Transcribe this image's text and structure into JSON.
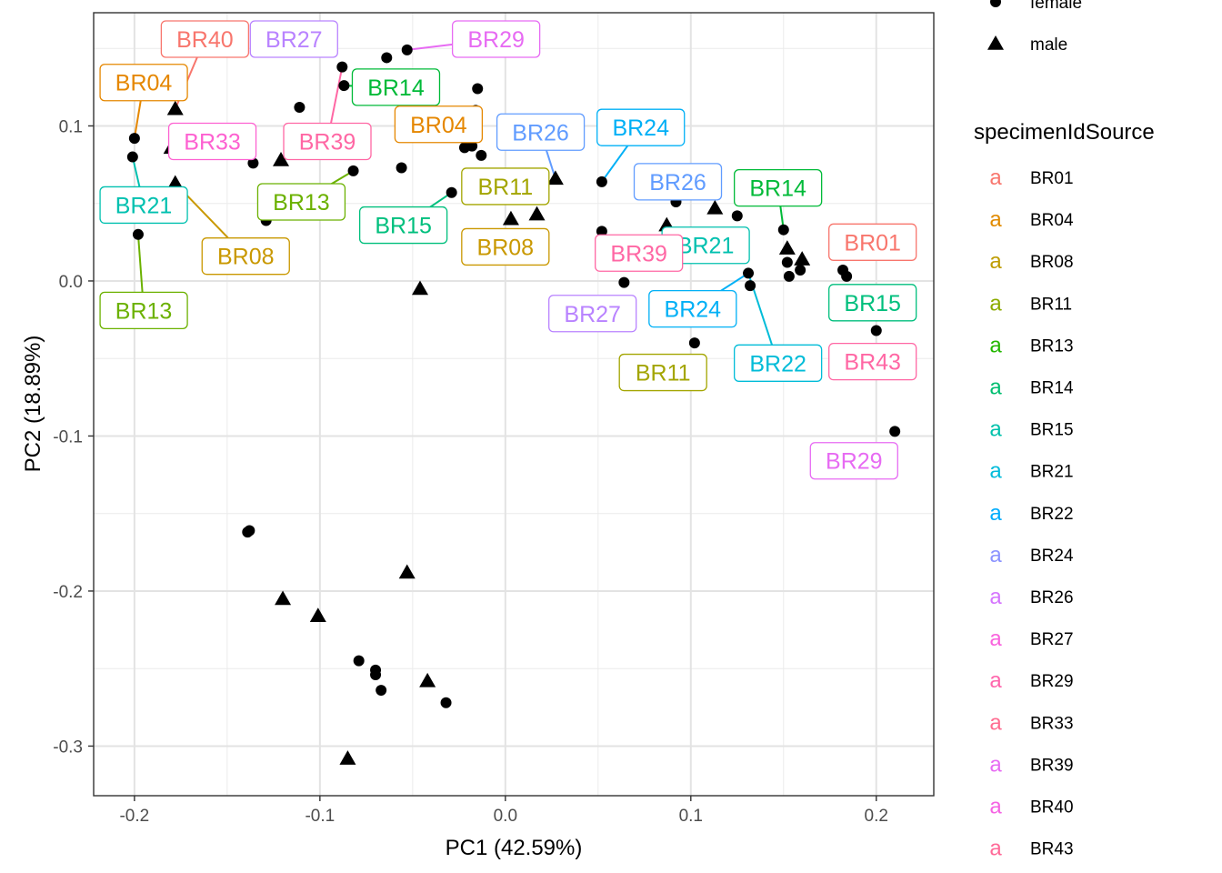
{
  "chart_data": {
    "type": "scatter",
    "xlabel": "PC1 (42.59%)",
    "ylabel": "PC2 (18.89%)",
    "xlim": [
      -0.222,
      0.231
    ],
    "ylim": [
      -0.332,
      0.173
    ],
    "x_ticks": [
      -0.2,
      -0.1,
      0.0,
      0.1,
      0.2
    ],
    "x_tick_labels": [
      "-0.2",
      "-0.1",
      "0.0",
      "0.1",
      "0.2"
    ],
    "y_ticks": [
      0.1,
      0.0,
      -0.1,
      -0.2,
      -0.3
    ],
    "y_tick_labels": [
      "0.1",
      "0.0",
      "-0.1",
      "-0.2",
      "-0.3"
    ],
    "grid": true,
    "legend_position": "right",
    "shape_legend": {
      "entries": [
        {
          "label": "female",
          "shape": "circle"
        },
        {
          "label": "male",
          "shape": "triangle"
        }
      ]
    },
    "color_legend": {
      "title": "specimenIdSource",
      "key_glyph": "a",
      "entries": [
        {
          "label": "BR01",
          "color": "#F8766D"
        },
        {
          "label": "BR04",
          "color": "#E18A00"
        },
        {
          "label": "BR08",
          "color": "#BE9C00"
        },
        {
          "label": "BR11",
          "color": "#8CAB00"
        },
        {
          "label": "BR13",
          "color": "#24B700"
        },
        {
          "label": "BR14",
          "color": "#00BE70"
        },
        {
          "label": "BR15",
          "color": "#00C1AB"
        },
        {
          "label": "BR21",
          "color": "#00BBDA"
        },
        {
          "label": "BR22",
          "color": "#00ACFC"
        },
        {
          "label": "BR24",
          "color": "#8B93FF"
        },
        {
          "label": "BR26",
          "color": "#D575FE"
        },
        {
          "label": "BR27",
          "color": "#F962DD"
        },
        {
          "label": "BR29",
          "color": "#FF65AC"
        },
        {
          "label": "BR33",
          "color": "#FF6C91"
        },
        {
          "label": "BR39",
          "color": "#E76BF3"
        },
        {
          "label": "BR40",
          "color": "#F564E3"
        },
        {
          "label": "BR43",
          "color": "#FF6A98"
        }
      ]
    },
    "label_colors": {
      "BR01": "#F8766D",
      "BR04": "#E58700",
      "BR08": "#C99800",
      "BR11": "#A3A500",
      "BR13": "#6BB100",
      "BR14": "#00BA38",
      "BR15": "#00BF7D",
      "BR21": "#00C0AF",
      "BR22": "#00BCD8",
      "BR24": "#00B0F6",
      "BR26": "#619CFF",
      "BR27": "#B983FF",
      "BR29": "#E76BF3",
      "BR33": "#FD61D1",
      "BR39": "#FF67A4",
      "BR40": "#F8766D",
      "BR43": "#FF67A4"
    },
    "points": [
      {
        "x": -0.2,
        "y": 0.092,
        "shape": "circle"
      },
      {
        "x": -0.201,
        "y": 0.08,
        "shape": "circle"
      },
      {
        "x": -0.198,
        "y": 0.03,
        "shape": "circle"
      },
      {
        "x": -0.178,
        "y": 0.111,
        "shape": "triangle"
      },
      {
        "x": -0.18,
        "y": 0.086,
        "shape": "triangle"
      },
      {
        "x": -0.178,
        "y": 0.063,
        "shape": "triangle"
      },
      {
        "x": -0.136,
        "y": 0.076,
        "shape": "circle"
      },
      {
        "x": -0.129,
        "y": 0.039,
        "shape": "circle"
      },
      {
        "x": -0.121,
        "y": 0.078,
        "shape": "triangle"
      },
      {
        "x": -0.111,
        "y": 0.112,
        "shape": "circle"
      },
      {
        "x": -0.088,
        "y": 0.138,
        "shape": "circle"
      },
      {
        "x": -0.087,
        "y": 0.126,
        "shape": "circle"
      },
      {
        "x": -0.082,
        "y": 0.071,
        "shape": "circle"
      },
      {
        "x": -0.064,
        "y": 0.144,
        "shape": "circle"
      },
      {
        "x": -0.053,
        "y": 0.149,
        "shape": "circle"
      },
      {
        "x": -0.056,
        "y": 0.073,
        "shape": "circle"
      },
      {
        "x": -0.046,
        "y": -0.005,
        "shape": "triangle"
      },
      {
        "x": -0.029,
        "y": 0.057,
        "shape": "circle"
      },
      {
        "x": -0.022,
        "y": 0.086,
        "shape": "circle"
      },
      {
        "x": -0.018,
        "y": 0.087,
        "shape": "circle"
      },
      {
        "x": -0.016,
        "y": 0.11,
        "shape": "circle"
      },
      {
        "x": -0.015,
        "y": 0.124,
        "shape": "circle"
      },
      {
        "x": -0.013,
        "y": 0.081,
        "shape": "circle"
      },
      {
        "x": 0.003,
        "y": 0.04,
        "shape": "triangle"
      },
      {
        "x": 0.017,
        "y": 0.043,
        "shape": "triangle"
      },
      {
        "x": 0.027,
        "y": 0.066,
        "shape": "triangle"
      },
      {
        "x": 0.052,
        "y": 0.064,
        "shape": "circle"
      },
      {
        "x": 0.052,
        "y": 0.032,
        "shape": "circle"
      },
      {
        "x": 0.064,
        "y": -0.001,
        "shape": "circle"
      },
      {
        "x": 0.087,
        "y": 0.036,
        "shape": "triangle"
      },
      {
        "x": 0.092,
        "y": 0.051,
        "shape": "circle"
      },
      {
        "x": 0.102,
        "y": -0.04,
        "shape": "circle"
      },
      {
        "x": 0.113,
        "y": 0.047,
        "shape": "triangle"
      },
      {
        "x": 0.125,
        "y": 0.042,
        "shape": "circle"
      },
      {
        "x": 0.131,
        "y": 0.005,
        "shape": "circle"
      },
      {
        "x": 0.132,
        "y": -0.003,
        "shape": "circle"
      },
      {
        "x": 0.15,
        "y": 0.033,
        "shape": "circle"
      },
      {
        "x": 0.152,
        "y": 0.012,
        "shape": "circle"
      },
      {
        "x": 0.152,
        "y": 0.021,
        "shape": "triangle"
      },
      {
        "x": 0.153,
        "y": 0.003,
        "shape": "circle"
      },
      {
        "x": 0.159,
        "y": 0.007,
        "shape": "circle"
      },
      {
        "x": 0.16,
        "y": 0.014,
        "shape": "triangle"
      },
      {
        "x": 0.182,
        "y": 0.007,
        "shape": "circle"
      },
      {
        "x": 0.184,
        "y": 0.003,
        "shape": "circle"
      },
      {
        "x": 0.2,
        "y": -0.032,
        "shape": "circle"
      },
      {
        "x": 0.21,
        "y": -0.06,
        "shape": "circle"
      },
      {
        "x": 0.21,
        "y": -0.097,
        "shape": "circle"
      },
      {
        "x": -0.139,
        "y": -0.162,
        "shape": "circle"
      },
      {
        "x": -0.138,
        "y": -0.161,
        "shape": "circle"
      },
      {
        "x": -0.053,
        "y": -0.188,
        "shape": "triangle"
      },
      {
        "x": -0.12,
        "y": -0.205,
        "shape": "triangle"
      },
      {
        "x": -0.101,
        "y": -0.216,
        "shape": "triangle"
      },
      {
        "x": -0.079,
        "y": -0.245,
        "shape": "circle"
      },
      {
        "x": -0.07,
        "y": -0.251,
        "shape": "circle"
      },
      {
        "x": -0.07,
        "y": -0.254,
        "shape": "circle"
      },
      {
        "x": -0.067,
        "y": -0.264,
        "shape": "circle"
      },
      {
        "x": -0.042,
        "y": -0.258,
        "shape": "triangle"
      },
      {
        "x": -0.032,
        "y": -0.272,
        "shape": "circle"
      },
      {
        "x": -0.085,
        "y": -0.308,
        "shape": "triangle"
      }
    ],
    "labels": [
      {
        "text": "BR40",
        "lx": -0.162,
        "ly": 0.156,
        "px": -0.178,
        "py": 0.111
      },
      {
        "text": "BR27",
        "lx": -0.114,
        "ly": 0.156
      },
      {
        "text": "BR29",
        "lx": -0.005,
        "ly": 0.156,
        "px": -0.053,
        "py": 0.149
      },
      {
        "text": "BR04",
        "lx": -0.195,
        "ly": 0.128,
        "px": -0.2,
        "py": 0.092
      },
      {
        "text": "BR14",
        "lx": -0.059,
        "ly": 0.125,
        "px": -0.087,
        "py": 0.126
      },
      {
        "text": "BR33",
        "lx": -0.158,
        "ly": 0.09
      },
      {
        "text": "BR39",
        "lx": -0.096,
        "ly": 0.09,
        "px": -0.088,
        "py": 0.138
      },
      {
        "text": "BR04",
        "lx": -0.036,
        "ly": 0.101
      },
      {
        "text": "BR26",
        "lx": 0.019,
        "ly": 0.096,
        "px": 0.027,
        "py": 0.066
      },
      {
        "text": "BR24",
        "lx": 0.073,
        "ly": 0.099,
        "px": 0.052,
        "py": 0.064
      },
      {
        "text": "BR11",
        "lx": 0.0,
        "ly": 0.061
      },
      {
        "text": "BR13",
        "lx": -0.11,
        "ly": 0.051,
        "px": -0.082,
        "py": 0.071
      },
      {
        "text": "BR15",
        "lx": -0.055,
        "ly": 0.036,
        "px": -0.029,
        "py": 0.057
      },
      {
        "text": "BR26",
        "lx": 0.093,
        "ly": 0.064
      },
      {
        "text": "BR14",
        "lx": 0.147,
        "ly": 0.06,
        "px": 0.15,
        "py": 0.033
      },
      {
        "text": "BR21",
        "lx": -0.195,
        "ly": 0.049,
        "px": -0.201,
        "py": 0.08
      },
      {
        "text": "BR08",
        "lx": -0.14,
        "ly": 0.016,
        "px": -0.178,
        "py": 0.063
      },
      {
        "text": "BR08",
        "lx": 0.0,
        "ly": 0.022
      },
      {
        "text": "BR21",
        "lx": 0.108,
        "ly": 0.023
      },
      {
        "text": "BR39",
        "lx": 0.072,
        "ly": 0.018
      },
      {
        "text": "BR01",
        "lx": 0.198,
        "ly": 0.025
      },
      {
        "text": "BR13",
        "lx": -0.195,
        "ly": -0.019,
        "px": -0.198,
        "py": 0.03
      },
      {
        "text": "BR15",
        "lx": 0.198,
        "ly": -0.014
      },
      {
        "text": "BR27",
        "lx": 0.047,
        "ly": -0.021
      },
      {
        "text": "BR24",
        "lx": 0.101,
        "ly": -0.018,
        "px": 0.131,
        "py": 0.005
      },
      {
        "text": "BR22",
        "lx": 0.147,
        "ly": -0.053,
        "px": 0.131,
        "py": 0.005
      },
      {
        "text": "BR43",
        "lx": 0.198,
        "ly": -0.052
      },
      {
        "text": "BR11",
        "lx": 0.085,
        "ly": -0.059
      },
      {
        "text": "BR29",
        "lx": 0.188,
        "ly": -0.116
      }
    ]
  }
}
